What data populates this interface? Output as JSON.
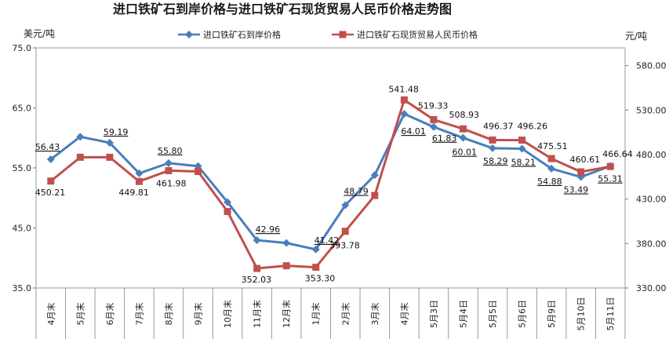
{
  "chart_data": {
    "type": "line",
    "title": "进口铁矿石到岸价格与进口铁矿石现货贸易人民币价格走势图",
    "y_left_label": "美元/吨",
    "y_right_label": "元/吨",
    "y_left_lim": [
      35,
      75
    ],
    "y_left_ticks": [
      "35.0",
      "45.0",
      "55.0",
      "65.0",
      "75.0"
    ],
    "y_right_lim": [
      330,
      600
    ],
    "y_right_ticks": [
      "330.00",
      "380.00",
      "430.00",
      "480.00",
      "530.00",
      "580.00"
    ],
    "categories": [
      "4月末",
      "5月末",
      "6月末",
      "7月末",
      "8月末",
      "9月末",
      "10月末",
      "11月末",
      "12月末",
      "1月末",
      "2月末",
      "3月末",
      "4月末",
      "5月3日",
      "5月4日",
      "5月5日",
      "5月6日",
      "5月9日",
      "5月10日",
      "5月11日"
    ],
    "legend_position": "top",
    "series": [
      {
        "name": "进口铁矿石到岸价格",
        "axis": "left",
        "color": "#4a7ebb",
        "marker": "diamond",
        "values": [
          56.43,
          60.2,
          59.19,
          54.1,
          55.8,
          55.3,
          49.3,
          42.96,
          42.5,
          41.42,
          48.79,
          53.8,
          64.01,
          61.83,
          60.01,
          58.29,
          58.21,
          54.88,
          53.49,
          55.31
        ],
        "labels": [
          "56.43",
          "",
          "59.19",
          "",
          "55.80",
          "",
          "",
          "42.96",
          "",
          "41.42",
          "48.79",
          "",
          "64.01",
          "61.83",
          "60.01",
          "58.29",
          "58.21",
          "54.88",
          "53.49",
          "55.31"
        ]
      },
      {
        "name": "进口铁矿石现货贸易人民币价格",
        "axis": "right",
        "color": "#c0504d",
        "marker": "square",
        "values": [
          450.21,
          477.0,
          477.0,
          449.81,
          461.98,
          461.0,
          416.0,
          352.03,
          355.0,
          353.3,
          393.78,
          434.0,
          541.48,
          519.33,
          508.93,
          496.37,
          496.26,
          475.51,
          460.61,
          466.64
        ],
        "labels": [
          "450.21",
          "",
          "",
          "449.81",
          "461.98",
          "",
          "",
          "352.03",
          "",
          "353.30",
          "393.78",
          "",
          "541.48",
          "519.33",
          "508.93",
          "496.37",
          "496.26",
          "475.51",
          "460.61",
          "466.64"
        ]
      }
    ]
  }
}
